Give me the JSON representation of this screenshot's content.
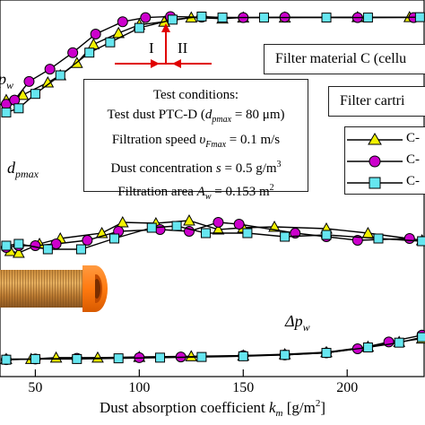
{
  "chart_data": {
    "type": "line",
    "title": "",
    "xlabel_prefix": "Dust absorption coefficient ",
    "xlabel_var": "k",
    "xlabel_sub": "m",
    "xlabel_unit": " [g/m",
    "xlabel_sup": "2",
    "xlabel_close": "]",
    "xlim": [
      33,
      237
    ],
    "x_ticks": [
      "50",
      "100",
      "150",
      "200"
    ],
    "x_tick_values": [
      50,
      100,
      150,
      200
    ],
    "annotations": {
      "zone_1": "I",
      "zone_2": "II",
      "label_eta": "p",
      "label_eta_sub": "w",
      "label_dp": "d",
      "label_dp_sub": "pmax",
      "label_dpw": "Δp",
      "label_dpw_sub": "w"
    },
    "series": [
      {
        "name": "C-",
        "marker": "triangle",
        "color": "#000000",
        "fill": "#f2f200",
        "panels": {
          "top": [
            [
              36,
              420
            ],
            [
              44,
              395
            ],
            [
              56,
              335
            ],
            [
              62,
              300
            ],
            [
              70,
              240
            ],
            [
              78,
              150
            ],
            [
              90,
              95
            ],
            [
              100,
              55
            ],
            [
              112,
              40
            ],
            [
              125,
              20
            ],
            [
              140,
              25
            ],
            [
              150,
              20
            ],
            [
              170,
              20
            ],
            [
              205,
              18
            ],
            [
              230,
              18
            ]
          ],
          "middle": [
            [
              38,
              400
            ],
            [
              42,
              410
            ],
            [
              52,
              360
            ],
            [
              62,
              330
            ],
            [
              82,
              300
            ],
            [
              92,
              240
            ],
            [
              108,
              245
            ],
            [
              124,
              230
            ],
            [
              138,
              280
            ],
            [
              150,
              270
            ],
            [
              165,
              265
            ],
            [
              190,
              275
            ],
            [
              210,
              300
            ],
            [
              236,
              340
            ]
          ],
          "bottom": [
            [
              36,
              10
            ],
            [
              48,
              10
            ],
            [
              60,
              12
            ],
            [
              80,
              12
            ],
            [
              100,
              13
            ],
            [
              125,
              14
            ],
            [
              150,
              15
            ],
            [
              170,
              17
            ],
            [
              190,
              20
            ],
            [
              210,
              28
            ],
            [
              225,
              35
            ],
            [
              236,
              40
            ]
          ]
        }
      },
      {
        "name": "C-",
        "marker": "circle",
        "color": "#000000",
        "fill": "#cc00cc",
        "panels": {
          "top": [
            [
              36,
              440
            ],
            [
              40,
              420
            ],
            [
              47,
              330
            ],
            [
              57,
              270
            ],
            [
              68,
              190
            ],
            [
              79,
              100
            ],
            [
              92,
              40
            ],
            [
              103,
              20
            ],
            [
              115,
              15
            ],
            [
              130,
              18
            ],
            [
              150,
              20
            ],
            [
              170,
              18
            ],
            [
              205,
              20
            ],
            [
              232,
              20
            ]
          ],
          "middle": [
            [
              36,
              380
            ],
            [
              42,
              370
            ],
            [
              50,
              370
            ],
            [
              60,
              360
            ],
            [
              75,
              340
            ],
            [
              90,
              290
            ],
            [
              110,
              280
            ],
            [
              124,
              290
            ],
            [
              138,
              240
            ],
            [
              148,
              250
            ],
            [
              175,
              300
            ],
            [
              190,
              320
            ],
            [
              205,
              340
            ],
            [
              230,
              330
            ]
          ],
          "bottom": [
            [
              36,
              9
            ],
            [
              50,
              10
            ],
            [
              70,
              11
            ],
            [
              100,
              12
            ],
            [
              120,
              13
            ],
            [
              150,
              15
            ],
            [
              170,
              16
            ],
            [
              190,
              19
            ],
            [
              205,
              25
            ],
            [
              220,
              35
            ],
            [
              236,
              45
            ]
          ]
        }
      },
      {
        "name": "C-",
        "marker": "square",
        "color": "#000000",
        "fill": "#66e6f0",
        "panels": {
          "top": [
            [
              36,
              480
            ],
            [
              42,
              460
            ],
            [
              50,
              390
            ],
            [
              62,
              300
            ],
            [
              76,
              190
            ],
            [
              86,
              140
            ],
            [
              100,
              70
            ],
            [
              116,
              30
            ],
            [
              130,
              15
            ],
            [
              140,
              20
            ],
            [
              160,
              20
            ],
            [
              190,
              20
            ],
            [
              210,
              20
            ],
            [
              235,
              18
            ]
          ],
          "middle": [
            [
              36,
              370
            ],
            [
              42,
              360
            ],
            [
              56,
              390
            ],
            [
              72,
              390
            ],
            [
              88,
              330
            ],
            [
              106,
              270
            ],
            [
              118,
              260
            ],
            [
              132,
              300
            ],
            [
              152,
              300
            ],
            [
              170,
              320
            ],
            [
              190,
              310
            ],
            [
              215,
              330
            ],
            [
              236,
              345
            ]
          ],
          "bottom": [
            [
              36,
              9
            ],
            [
              50,
              10
            ],
            [
              70,
              10
            ],
            [
              90,
              11
            ],
            [
              110,
              12
            ],
            [
              130,
              13
            ],
            [
              150,
              14
            ],
            [
              170,
              16
            ],
            [
              190,
              19
            ],
            [
              210,
              27
            ],
            [
              225,
              34
            ],
            [
              236,
              42
            ]
          ]
        }
      }
    ]
  },
  "material_box": "Filter material C (cellu",
  "cartridge_box": "Filter cartri",
  "conditions": {
    "heading": "Test conditions:",
    "line1_pre": "Test dust PTC-D (",
    "line1_var": "d",
    "line1_sub": "pmax",
    "line1_post": " = 80 μm)",
    "line2_pre": "Filtration speed ",
    "line2_var": "υ",
    "line2_sub": "Fmax",
    "line2_post": " = 0.1 m/s",
    "line3_pre": "Dust concentration ",
    "line3_var": "s",
    "line3_post": " = 0.5 g/m",
    "line3_sup": "3",
    "line4_pre": "Filtration area ",
    "line4_var": "A",
    "line4_sub": "w",
    "line4_post": " = 0.153 m",
    "line4_sup": "2"
  },
  "legend": [
    "C-",
    "C-",
    "C-"
  ]
}
